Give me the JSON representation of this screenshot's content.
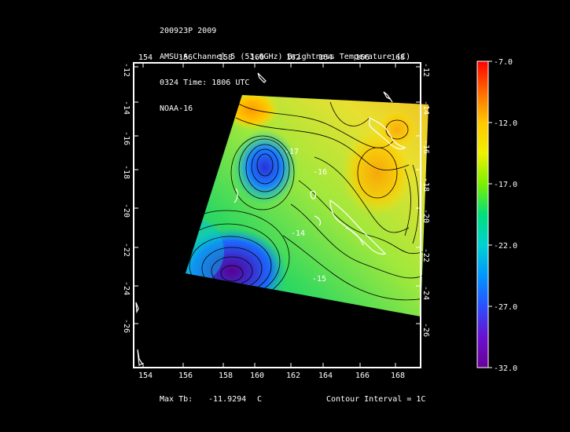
{
  "header": {
    "line1": "200923P 2009",
    "line2": "AMSU-A Channel 5 (53.6GHz) Brightness Temperature (C)",
    "line3": "0324 Time: 1806 UTC",
    "line4": "NOAA-16"
  },
  "axes": {
    "lon_ticks": [
      "154",
      "156",
      "158",
      "160",
      "162",
      "164",
      "166",
      "168"
    ],
    "lat_ticks": [
      "-12",
      "-14",
      "-16",
      "-18",
      "-20",
      "-22",
      "-24",
      "-26"
    ]
  },
  "colorbar": {
    "labels": [
      "-7.0",
      "-12.0",
      "-17.0",
      "-22.0",
      "-27.0",
      "-32.0"
    ],
    "min": -32.0,
    "max": -7.0,
    "colors": [
      "#ff0000",
      "#ff8c00",
      "#ffd700",
      "#ffff00",
      "#9aff00",
      "#00e65a",
      "#00d2d2",
      "#00a0ff",
      "#3a4cff",
      "#6a1cd0",
      "#5a0090"
    ]
  },
  "footer": {
    "max_label": "Max Tb:",
    "max_value": "-11.9294",
    "max_unit": "C",
    "contour": "Contour Interval = 1C"
  },
  "contour_labels": [
    "-14",
    "-15",
    "-16",
    "-17"
  ]
}
